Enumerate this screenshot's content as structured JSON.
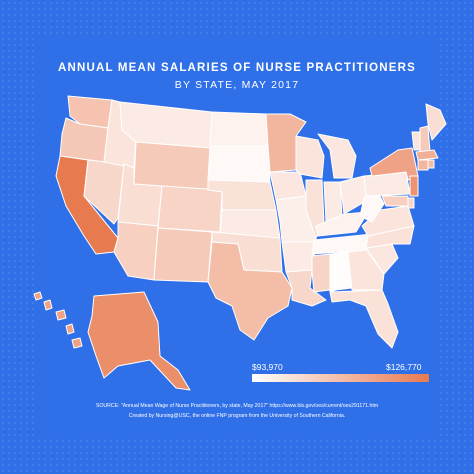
{
  "title": "ANNUAL MEAN SALARIES OF NURSE PRACTITIONERS",
  "subtitle": "BY STATE, MAY 2017",
  "legend": {
    "min_label": "$93,970",
    "max_label": "$126,770",
    "min_value": 93970,
    "max_value": 126770,
    "color_low": "#ffffff",
    "color_high": "#e87a50"
  },
  "source": "SOURCE: \"Annual Mean Wage of Nurse Practitioners, by state, May 2017\" https://www.bls.gov/oes/current/oes291171.htm",
  "credit": "Created by Nursing@USC, the online FNP program from the University of Southern California.",
  "colors": {
    "background": "#2f6fe8",
    "border": "#ffffff"
  },
  "states": [
    {
      "id": "WA",
      "shade": 0.45
    },
    {
      "id": "OR",
      "shade": 0.42
    },
    {
      "id": "CA",
      "shade": 1.0
    },
    {
      "id": "NV",
      "shade": 0.3
    },
    {
      "id": "ID",
      "shade": 0.2
    },
    {
      "id": "MT",
      "shade": 0.15
    },
    {
      "id": "WY",
      "shade": 0.4
    },
    {
      "id": "UT",
      "shade": 0.25
    },
    {
      "id": "AZ",
      "shade": 0.35
    },
    {
      "id": "CO",
      "shade": 0.32
    },
    {
      "id": "NM",
      "shade": 0.4
    },
    {
      "id": "ND",
      "shade": 0.1
    },
    {
      "id": "SD",
      "shade": 0.05
    },
    {
      "id": "NE",
      "shade": 0.22
    },
    {
      "id": "KS",
      "shade": 0.15
    },
    {
      "id": "OK",
      "shade": 0.25
    },
    {
      "id": "TX",
      "shade": 0.5
    },
    {
      "id": "MN",
      "shade": 0.55
    },
    {
      "id": "IA",
      "shade": 0.18
    },
    {
      "id": "MO",
      "shade": 0.12
    },
    {
      "id": "AR",
      "shade": 0.15
    },
    {
      "id": "LA",
      "shade": 0.3
    },
    {
      "id": "WI",
      "shade": 0.2
    },
    {
      "id": "IL",
      "shade": 0.22
    },
    {
      "id": "IN",
      "shade": 0.15
    },
    {
      "id": "MI",
      "shade": 0.18
    },
    {
      "id": "OH",
      "shade": 0.15
    },
    {
      "id": "KY",
      "shade": 0.1
    },
    {
      "id": "TN",
      "shade": 0.05
    },
    {
      "id": "MS",
      "shade": 0.32
    },
    {
      "id": "AL",
      "shade": 0.02
    },
    {
      "id": "GA",
      "shade": 0.2
    },
    {
      "id": "FL",
      "shade": 0.22
    },
    {
      "id": "SC",
      "shade": 0.18
    },
    {
      "id": "NC",
      "shade": 0.22
    },
    {
      "id": "VA",
      "shade": 0.2
    },
    {
      "id": "WV",
      "shade": 0.05
    },
    {
      "id": "PA",
      "shade": 0.15
    },
    {
      "id": "NY",
      "shade": 0.7
    },
    {
      "id": "VT",
      "shade": 0.2
    },
    {
      "id": "NH",
      "shade": 0.4
    },
    {
      "id": "ME",
      "shade": 0.25
    },
    {
      "id": "MA",
      "shade": 0.6
    },
    {
      "id": "CT",
      "shade": 0.55
    },
    {
      "id": "RI",
      "shade": 0.5
    },
    {
      "id": "NJ",
      "shade": 0.8
    },
    {
      "id": "DE",
      "shade": 0.3
    },
    {
      "id": "MD",
      "shade": 0.35
    },
    {
      "id": "AK",
      "shade": 0.85
    },
    {
      "id": "HI",
      "shade": 0.7
    }
  ]
}
